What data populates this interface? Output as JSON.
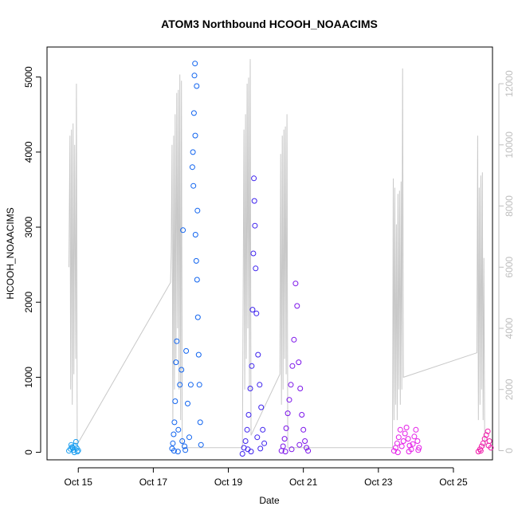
{
  "chart_data": {
    "type": "scatter",
    "title": "ATOM3 Northbound HCOOH_NOAACIMS",
    "xlabel": "Date",
    "ylabel": "HCOOH_NOAACIMS",
    "x_ticks": [
      "Oct 15",
      "Oct 17",
      "Oct 19",
      "Oct 21",
      "Oct 23",
      "Oct 25"
    ],
    "y_ticks": [
      "0",
      "1000",
      "2000",
      "3000",
      "4000",
      "5000"
    ],
    "y2_ticks": [
      "0",
      "2000",
      "4000",
      "6000",
      "8000",
      "10000",
      "12000"
    ],
    "xlim": [
      "2017-10-14T04:00",
      "2017-10-26T01:00"
    ],
    "ylim": [
      -100,
      5400
    ],
    "y2lim": [
      -300,
      13200
    ],
    "colors": {
      "axis": "#000000",
      "secondary_axis": "#bebebe",
      "secondary_line": "#c8c8c8"
    },
    "series": [
      {
        "color": "#1a9ef0",
        "points": [
          [
            "2017-10-14T18:00",
            20
          ],
          [
            "2017-10-14T19:00",
            45
          ],
          [
            "2017-10-14T20:00",
            70
          ],
          [
            "2017-10-14T21:00",
            30
          ],
          [
            "2017-10-14T22:00",
            90
          ],
          [
            "2017-10-14T23:00",
            55
          ],
          [
            "2017-10-15T00:00",
            25
          ],
          [
            "2017-10-14T19:30",
            100
          ],
          [
            "2017-10-14T22:30",
            140
          ],
          [
            "2017-10-14T23:30",
            10
          ],
          [
            "2017-10-14T20:30",
            60
          ],
          [
            "2017-10-14T21:30",
            0
          ]
        ]
      },
      {
        "color": "#0f63ef",
        "points": [
          [
            "2017-10-17T12:00",
            50
          ],
          [
            "2017-10-17T12:30",
            120
          ],
          [
            "2017-10-17T13:00",
            240
          ],
          [
            "2017-10-17T13:30",
            400
          ],
          [
            "2017-10-17T14:00",
            680
          ],
          [
            "2017-10-17T14:30",
            1200
          ],
          [
            "2017-10-17T15:00",
            1480
          ],
          [
            "2017-10-17T16:00",
            300
          ],
          [
            "2017-10-17T17:00",
            900
          ],
          [
            "2017-10-17T18:00",
            1100
          ],
          [
            "2017-10-17T19:00",
            2960
          ],
          [
            "2017-10-17T20:00",
            80
          ],
          [
            "2017-10-17T21:00",
            1350
          ],
          [
            "2017-10-17T22:00",
            650
          ],
          [
            "2017-10-17T23:00",
            200
          ],
          [
            "2017-10-18T00:00",
            900
          ],
          [
            "2017-10-18T01:00",
            3800
          ],
          [
            "2017-10-18T01:20",
            4000
          ],
          [
            "2017-10-18T01:40",
            3550
          ],
          [
            "2017-10-18T02:00",
            4520
          ],
          [
            "2017-10-18T02:20",
            5020
          ],
          [
            "2017-10-18T02:40",
            5180
          ],
          [
            "2017-10-18T03:00",
            2900
          ],
          [
            "2017-10-18T03:30",
            2550
          ],
          [
            "2017-10-18T04:00",
            2300
          ],
          [
            "2017-10-18T04:30",
            1800
          ],
          [
            "2017-10-18T05:00",
            1300
          ],
          [
            "2017-10-18T05:30",
            900
          ],
          [
            "2017-10-18T06:00",
            400
          ],
          [
            "2017-10-18T06:30",
            100
          ],
          [
            "2017-10-17T13:15",
            20
          ],
          [
            "2017-10-17T15:45",
            10
          ],
          [
            "2017-10-17T18:30",
            150
          ],
          [
            "2017-10-17T20:30",
            30
          ],
          [
            "2017-10-18T03:45",
            4880
          ],
          [
            "2017-10-18T02:50",
            4220
          ],
          [
            "2017-10-18T04:15",
            3220
          ]
        ]
      },
      {
        "color": "#3d22ee",
        "points": [
          [
            "2017-10-19T09:00",
            -20
          ],
          [
            "2017-10-19T10:00",
            60
          ],
          [
            "2017-10-19T11:00",
            150
          ],
          [
            "2017-10-19T12:00",
            300
          ],
          [
            "2017-10-19T13:00",
            500
          ],
          [
            "2017-10-19T14:00",
            850
          ],
          [
            "2017-10-19T15:00",
            1150
          ],
          [
            "2017-10-19T15:30",
            1900
          ],
          [
            "2017-10-19T16:00",
            2650
          ],
          [
            "2017-10-19T16:20",
            3650
          ],
          [
            "2017-10-19T16:40",
            3350
          ],
          [
            "2017-10-19T17:00",
            3020
          ],
          [
            "2017-10-19T17:30",
            2450
          ],
          [
            "2017-10-19T18:00",
            1850
          ],
          [
            "2017-10-19T19:00",
            1300
          ],
          [
            "2017-10-19T20:00",
            900
          ],
          [
            "2017-10-19T21:00",
            600
          ],
          [
            "2017-10-19T22:00",
            300
          ],
          [
            "2017-10-19T23:00",
            120
          ],
          [
            "2017-10-19T12:30",
            40
          ],
          [
            "2017-10-19T14:30",
            10
          ],
          [
            "2017-10-19T18:30",
            200
          ],
          [
            "2017-10-19T20:30",
            50
          ]
        ]
      },
      {
        "color": "#7b12ea",
        "points": [
          [
            "2017-10-20T10:00",
            20
          ],
          [
            "2017-10-20T11:00",
            80
          ],
          [
            "2017-10-20T12:00",
            180
          ],
          [
            "2017-10-20T13:00",
            320
          ],
          [
            "2017-10-20T14:00",
            520
          ],
          [
            "2017-10-20T15:00",
            700
          ],
          [
            "2017-10-20T16:00",
            900
          ],
          [
            "2017-10-20T17:00",
            1150
          ],
          [
            "2017-10-20T18:00",
            1500
          ],
          [
            "2017-10-20T19:00",
            2250
          ],
          [
            "2017-10-20T20:00",
            1950
          ],
          [
            "2017-10-20T21:00",
            1200
          ],
          [
            "2017-10-20T22:00",
            850
          ],
          [
            "2017-10-20T23:00",
            500
          ],
          [
            "2017-10-21T00:00",
            300
          ],
          [
            "2017-10-21T01:00",
            150
          ],
          [
            "2017-10-21T02:00",
            60
          ],
          [
            "2017-10-21T03:00",
            20
          ],
          [
            "2017-10-20T12:30",
            10
          ],
          [
            "2017-10-20T16:30",
            40
          ],
          [
            "2017-10-20T21:30",
            100
          ]
        ]
      },
      {
        "color": "#e41ee8",
        "points": [
          [
            "2017-10-23T10:00",
            20
          ],
          [
            "2017-10-23T11:00",
            60
          ],
          [
            "2017-10-23T12:00",
            120
          ],
          [
            "2017-10-23T13:00",
            200
          ],
          [
            "2017-10-23T14:00",
            300
          ],
          [
            "2017-10-23T15:00",
            80
          ],
          [
            "2017-10-23T16:00",
            150
          ],
          [
            "2017-10-23T17:00",
            250
          ],
          [
            "2017-10-23T18:00",
            330
          ],
          [
            "2017-10-23T19:00",
            180
          ],
          [
            "2017-10-23T20:00",
            90
          ],
          [
            "2017-10-23T21:00",
            40
          ],
          [
            "2017-10-23T22:00",
            110
          ],
          [
            "2017-10-23T23:00",
            210
          ],
          [
            "2017-10-24T00:00",
            300
          ],
          [
            "2017-10-24T01:00",
            150
          ],
          [
            "2017-10-24T02:00",
            60
          ],
          [
            "2017-10-23T12:30",
            0
          ],
          [
            "2017-10-23T19:30",
            10
          ],
          [
            "2017-10-24T01:30",
            30
          ]
        ]
      },
      {
        "color": "#f01caa",
        "points": [
          [
            "2017-10-25T16:00",
            10
          ],
          [
            "2017-10-25T17:00",
            40
          ],
          [
            "2017-10-25T18:00",
            80
          ],
          [
            "2017-10-25T19:00",
            120
          ],
          [
            "2017-10-25T20:00",
            180
          ],
          [
            "2017-10-25T21:00",
            230
          ],
          [
            "2017-10-25T22:00",
            280
          ],
          [
            "2017-10-25T23:00",
            150
          ],
          [
            "2017-10-26T00:00",
            60
          ],
          [
            "2017-10-25T17:30",
            20
          ],
          [
            "2017-10-25T22:30",
            90
          ]
        ]
      }
    ],
    "secondary_series": {
      "color": "#c8c8c8",
      "points": [
        [
          "2017-10-14T18:00",
          6000
        ],
        [
          "2017-10-14T18:40",
          10300
        ],
        [
          "2017-10-14T19:10",
          2000
        ],
        [
          "2017-10-14T19:40",
          10500
        ],
        [
          "2017-10-14T20:10",
          1500
        ],
        [
          "2017-10-14T20:40",
          10700
        ],
        [
          "2017-10-14T21:10",
          2500
        ],
        [
          "2017-10-14T21:40",
          10000
        ],
        [
          "2017-10-14T22:20",
          3000
        ],
        [
          "2017-10-14T22:50",
          12000
        ],
        [
          "2017-10-14T23:20",
          200
        ],
        [
          "2017-10-17T11:00",
          5500
        ],
        [
          "2017-10-17T11:30",
          6500
        ],
        [
          "2017-10-17T12:00",
          10000
        ],
        [
          "2017-10-17T12:30",
          1000
        ],
        [
          "2017-10-17T13:00",
          10300
        ],
        [
          "2017-10-17T13:30",
          2000
        ],
        [
          "2017-10-17T14:00",
          11000
        ],
        [
          "2017-10-17T14:30",
          3000
        ],
        [
          "2017-10-17T15:00",
          11700
        ],
        [
          "2017-10-17T15:30",
          4000
        ],
        [
          "2017-10-17T16:00",
          11800
        ],
        [
          "2017-10-17T16:30",
          2000
        ],
        [
          "2017-10-17T17:00",
          12300
        ],
        [
          "2017-10-17T17:30",
          1000
        ],
        [
          "2017-10-17T18:00",
          12100
        ],
        [
          "2017-10-17T18:30",
          100
        ],
        [
          "2017-10-19T09:00",
          100
        ],
        [
          "2017-10-19T10:00",
          10500
        ],
        [
          "2017-10-19T10:30",
          2000
        ],
        [
          "2017-10-19T11:00",
          11000
        ],
        [
          "2017-10-19T11:30",
          3000
        ],
        [
          "2017-10-19T12:00",
          12000
        ],
        [
          "2017-10-19T12:30",
          4000
        ],
        [
          "2017-10-19T13:00",
          12200
        ],
        [
          "2017-10-19T13:30",
          2000
        ],
        [
          "2017-10-19T14:00",
          12800
        ],
        [
          "2017-10-19T14:30",
          500
        ],
        [
          "2017-10-20T09:00",
          2500
        ],
        [
          "2017-10-20T09:30",
          9700
        ],
        [
          "2017-10-20T10:00",
          1500
        ],
        [
          "2017-10-20T10:30",
          10300
        ],
        [
          "2017-10-20T11:00",
          2000
        ],
        [
          "2017-10-20T11:30",
          10500
        ],
        [
          "2017-10-20T12:00",
          3000
        ],
        [
          "2017-10-20T12:30",
          10600
        ],
        [
          "2017-10-20T13:00",
          2500
        ],
        [
          "2017-10-20T13:30",
          11000
        ],
        [
          "2017-10-20T14:00",
          100
        ],
        [
          "2017-10-23T09:00",
          100
        ],
        [
          "2017-10-23T09:30",
          8900
        ],
        [
          "2017-10-23T10:00",
          1000
        ],
        [
          "2017-10-23T10:30",
          8600
        ],
        [
          "2017-10-23T11:00",
          1500
        ],
        [
          "2017-10-23T11:30",
          7400
        ],
        [
          "2017-10-23T12:00",
          1000
        ],
        [
          "2017-10-23T12:30",
          8400
        ],
        [
          "2017-10-23T13:00",
          2000
        ],
        [
          "2017-10-23T13:30",
          8500
        ],
        [
          "2017-10-23T14:00",
          1500
        ],
        [
          "2017-10-23T14:30",
          8800
        ],
        [
          "2017-10-23T15:00",
          2000
        ],
        [
          "2017-10-23T15:30",
          12500
        ],
        [
          "2017-10-23T16:00",
          2400
        ],
        [
          "2017-10-25T15:00",
          3200
        ],
        [
          "2017-10-25T15:30",
          10300
        ],
        [
          "2017-10-25T16:00",
          1000
        ],
        [
          "2017-10-25T16:30",
          8600
        ],
        [
          "2017-10-25T17:00",
          1500
        ],
        [
          "2017-10-25T17:30",
          9000
        ],
        [
          "2017-10-25T18:00",
          2000
        ],
        [
          "2017-10-25T18:30",
          9100
        ],
        [
          "2017-10-25T19:00",
          1000
        ],
        [
          "2017-10-25T19:30",
          6300
        ],
        [
          "2017-10-25T20:00",
          100
        ]
      ]
    }
  }
}
